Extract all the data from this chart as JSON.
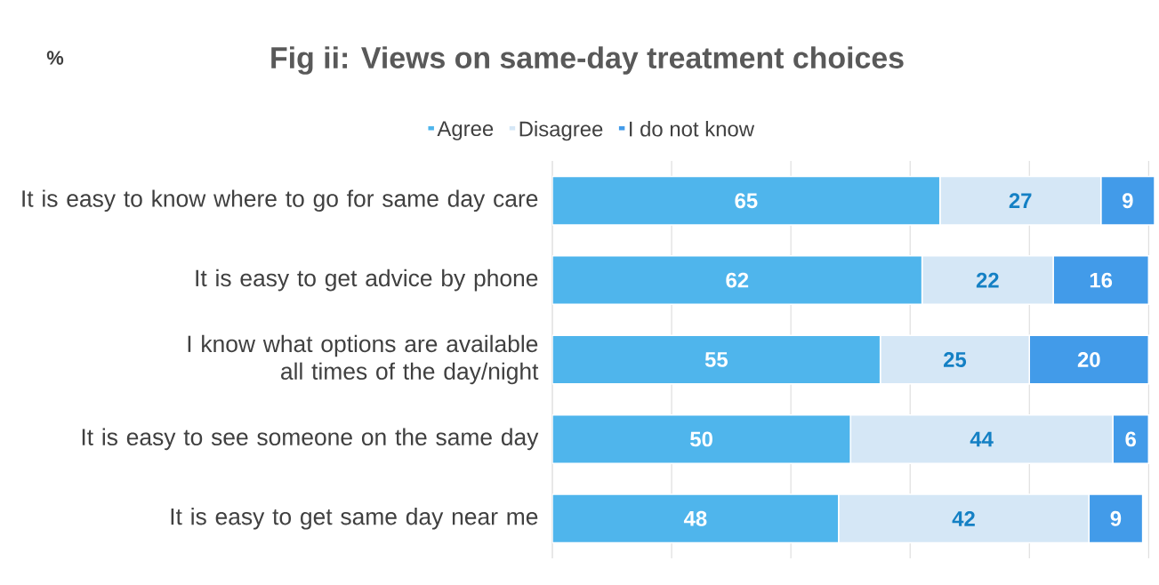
{
  "chart_data": {
    "type": "bar",
    "orientation": "horizontal",
    "stacked": true,
    "title": "Fig ii: Views on same-day treatment choices",
    "annotations": [
      "%"
    ],
    "categories": [
      "It is easy to know where to go for same day care",
      "It is easy to get advice by phone",
      "I know what options are available all times of the day/night",
      "It is easy to see someone on the same day",
      "It is easy to get same day near me"
    ],
    "series": [
      {
        "name": "Agree",
        "color": "#4fb5ec",
        "values": [
          65,
          62,
          55,
          50,
          48
        ]
      },
      {
        "name": "Disagree",
        "color": "#d5e7f6",
        "values": [
          27,
          22,
          25,
          44,
          42
        ]
      },
      {
        "name": "I do not know",
        "color": "#429be9",
        "values": [
          9,
          16,
          20,
          6,
          9
        ]
      }
    ],
    "xlim": [
      0,
      101
    ],
    "xticks": [
      {
        "value": 0,
        "label": null
      },
      {
        "value": 20,
        "label": null
      },
      {
        "value": 40,
        "label": null
      },
      {
        "value": 60,
        "label": null
      },
      {
        "value": 80,
        "label": null
      },
      {
        "value": 100,
        "label": null
      }
    ],
    "tick_labels": "y",
    "grid": "x",
    "legend": "top",
    "data_labels": true
  }
}
